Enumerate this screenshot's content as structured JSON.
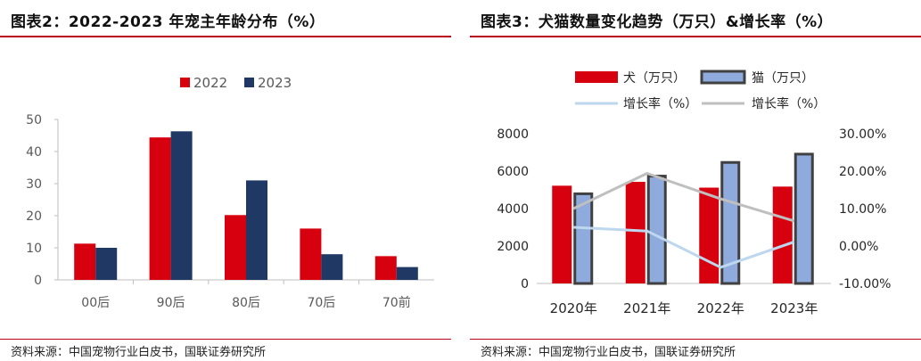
{
  "left": {
    "title": "图表2：2022-2023 年宠主年龄分布（%）",
    "source": "资料来源：中国宠物行业白皮书，国联证券研究所",
    "chart_data": {
      "type": "bar",
      "categories": [
        "00后",
        "90后",
        "80后",
        "70后",
        "70前"
      ],
      "series": [
        {
          "name": "2022",
          "values": [
            11.3,
            44.4,
            20.2,
            16.0,
            7.4
          ],
          "color": "#d7000f"
        },
        {
          "name": "2023",
          "values": [
            10.0,
            46.3,
            31.0,
            8.0,
            4.0
          ],
          "color": "#1f3864"
        }
      ],
      "yticks": [
        0,
        10,
        20,
        30,
        40,
        50
      ],
      "ylim": [
        0,
        50
      ],
      "legend": "top-center",
      "grid": false
    }
  },
  "right": {
    "title": "图表3：犬猫数量变化趋势（万只）&增长率（%）",
    "source": "资料来源：中国宠物行业白皮书，国联证券研究所",
    "chart_data": {
      "type": "bar",
      "categories": [
        "2020年",
        "2021年",
        "2022年",
        "2023年"
      ],
      "bar_series": [
        {
          "name": "犬（万只）",
          "values": [
            5222,
            5429,
            5119,
            5175
          ],
          "color": "#d7000f"
        },
        {
          "name": "猫（万只）",
          "values": [
            4862,
            5806,
            6536,
            6980
          ],
          "color": "#8faadc",
          "edge": "#404040"
        }
      ],
      "line_series": [
        {
          "name": "增长率（%）",
          "values": [
            5.0,
            4.0,
            -5.7,
            1.1
          ],
          "color": "#bdd7ee",
          "axis": "right"
        },
        {
          "name": "增长率（%）",
          "values": [
            10.0,
            19.4,
            12.6,
            6.7
          ],
          "color": "#bfbfbf",
          "axis": "right"
        }
      ],
      "left_yticks": [
        "0",
        "2000",
        "4000",
        "6000",
        "8000"
      ],
      "left_ylim": [
        0,
        8000
      ],
      "right_yticks": [
        "-10.00%",
        "0.00%",
        "10.00%",
        "20.00%",
        "30.00%"
      ],
      "right_ylim": [
        -10,
        30
      ],
      "legend": "top",
      "grid": false
    }
  }
}
